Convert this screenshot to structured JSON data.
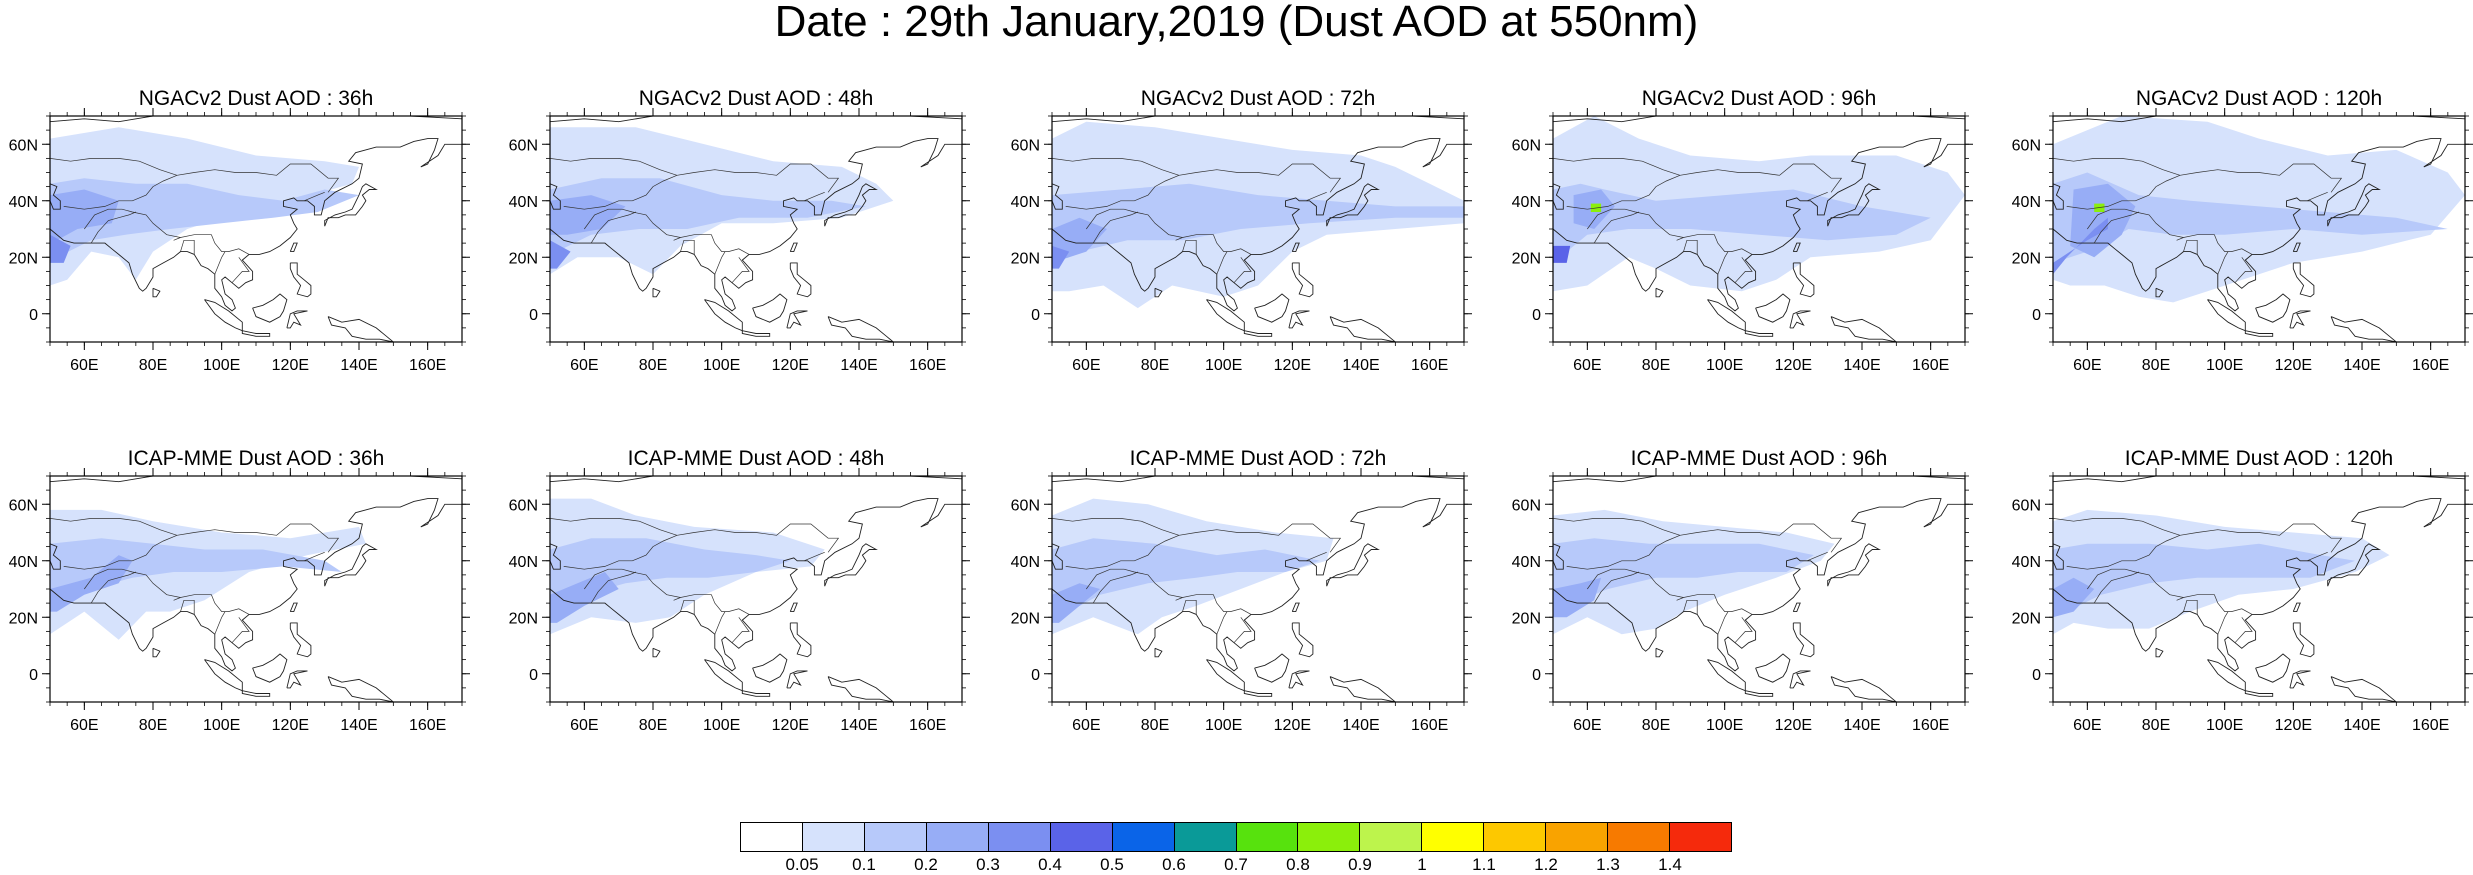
{
  "title": "Date : 29th January,2019 (Dust AOD at 550nm)",
  "map": {
    "lon_range": [
      50,
      170
    ],
    "lat_range": [
      -10,
      70
    ],
    "lat_ticks": [
      "60N",
      "40N",
      "20N",
      "0"
    ],
    "lat_tick_values": [
      60,
      40,
      20,
      0
    ],
    "lon_ticks": [
      "60E",
      "80E",
      "100E",
      "120E",
      "140E",
      "160E"
    ],
    "lon_tick_values": [
      60,
      80,
      100,
      120,
      140,
      160
    ]
  },
  "panels": [
    {
      "title": "NGACv2 Dust AOD : 36h",
      "model": "NGACv2",
      "lead": "36h"
    },
    {
      "title": "NGACv2 Dust AOD : 48h",
      "model": "NGACv2",
      "lead": "48h"
    },
    {
      "title": "NGACv2 Dust AOD : 72h",
      "model": "NGACv2",
      "lead": "72h"
    },
    {
      "title": "NGACv2 Dust AOD : 96h",
      "model": "NGACv2",
      "lead": "96h"
    },
    {
      "title": "NGACv2 Dust AOD : 120h",
      "model": "NGACv2",
      "lead": "120h"
    },
    {
      "title": "ICAP-MME Dust AOD : 36h",
      "model": "ICAP-MME",
      "lead": "36h"
    },
    {
      "title": "ICAP-MME Dust AOD : 48h",
      "model": "ICAP-MME",
      "lead": "48h"
    },
    {
      "title": "ICAP-MME Dust AOD : 72h",
      "model": "ICAP-MME",
      "lead": "72h"
    },
    {
      "title": "ICAP-MME Dust AOD : 96h",
      "model": "ICAP-MME",
      "lead": "96h"
    },
    {
      "title": "ICAP-MME Dust AOD : 120h",
      "model": "ICAP-MME",
      "lead": "120h"
    }
  ],
  "colorbar": {
    "colors": [
      "#ffffff",
      "#d6e2fc",
      "#b7c9fa",
      "#97adf6",
      "#7b8ff1",
      "#5a63e8",
      "#0a64e8",
      "#0a9a98",
      "#57e20d",
      "#8bef0b",
      "#bdf44c",
      "#ffff00",
      "#fdc800",
      "#f9a300",
      "#f77a00",
      "#f52a0c"
    ],
    "labels": [
      "0.05",
      "0.1",
      "0.2",
      "0.3",
      "0.4",
      "0.5",
      "0.6",
      "0.7",
      "0.8",
      "0.9",
      "1",
      "1.1",
      "1.2",
      "1.3",
      "1.4"
    ]
  }
}
